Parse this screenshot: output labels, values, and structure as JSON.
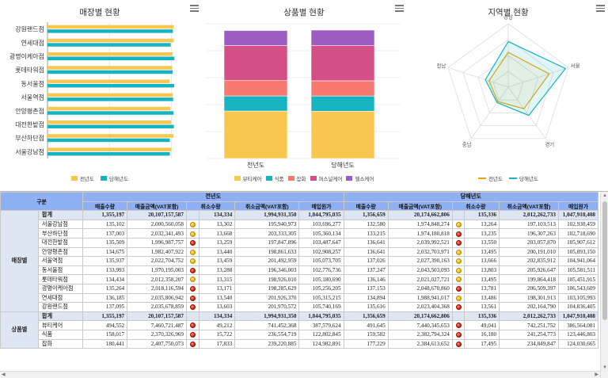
{
  "charts": {
    "store": {
      "title": "매장별 현황",
      "legend": [
        "전년도",
        "당해년도"
      ],
      "colors": {
        "prev": "#f9c74f",
        "curr": "#17b3c1"
      },
      "axis_ticks": [
        "0",
        "1,000,000,000",
        "2,000,000,000"
      ]
    },
    "product": {
      "title": "상품별 현황",
      "legend": [
        "뷰티케어",
        "식품",
        "잡화",
        "퍼스널케어",
        "헬스케어"
      ],
      "colors": [
        "#f9c74f",
        "#17b3c1",
        "#f6786f",
        "#d34f86",
        "#9d5cc1"
      ]
    },
    "region": {
      "title": "지역별 현황",
      "legend": [
        "전년도",
        "당해년도"
      ],
      "colors": {
        "prev": "#e8a400",
        "curr": "#17b3c1"
      },
      "axes": [
        "경남",
        "서울",
        "경기",
        "충남",
        "전남"
      ]
    }
  },
  "chart_data": [
    {
      "type": "bar",
      "orientation": "horizontal",
      "title": "매장별 현황",
      "categories": [
        "강원랜드점",
        "연세대점",
        "광명이케아점",
        "롯데타워점",
        "동서울점",
        "서울역점",
        "안양평촌점",
        "대전한밭점",
        "부산하단점",
        "서울강남점"
      ],
      "series": [
        {
          "name": "전년도",
          "values": [
            2035678859,
            2035806942,
            2018116594,
            2012358207,
            1970195003,
            2022704752,
            1982407922,
            1996987757,
            2032341493,
            2000560058
          ]
        },
        {
          "name": "당해년도",
          "values": [
            2023404368,
            1988941017,
            2048670860,
            2021027721,
            2043503093,
            2027390163,
            2032703971,
            2039992521,
            1974180818,
            1974848274
          ]
        }
      ],
      "xlim": [
        0,
        2300000000
      ]
    },
    {
      "type": "bar",
      "stacked": true,
      "title": "상품별 현황",
      "categories": [
        "전년도",
        "당해년도"
      ],
      "series": [
        {
          "name": "뷰티케어",
          "values": [
            7460721487,
            7440345653
          ]
        },
        {
          "name": "식품",
          "values": [
            2370326969,
            2382794324
          ]
        },
        {
          "name": "잡화",
          "values": [
            2407750073,
            2384613652
          ]
        },
        {
          "name": "퍼스널케어",
          "values": [
            5500000000,
            5520000000
          ]
        },
        {
          "name": "헬스케어",
          "values": [
            2368000000,
            2446000000
          ]
        }
      ]
    },
    {
      "type": "radar",
      "title": "지역별 현황",
      "categories": [
        "경남",
        "서울",
        "경기",
        "충남",
        "전남"
      ],
      "series": [
        {
          "name": "전년도",
          "values": [
            0.55,
            0.68,
            0.42,
            0.28,
            0.32
          ]
        },
        {
          "name": "당해년도",
          "values": [
            0.72,
            0.95,
            0.55,
            0.3,
            0.38
          ]
        }
      ],
      "ylim": [
        0,
        1
      ]
    },
    {
      "type": "table",
      "group_header": "구분",
      "period_headers": [
        "전년도",
        "당해년도"
      ],
      "columns": [
        "매출수량",
        "매출금액(VAT포함)",
        "취소수량",
        "취소금액(VAT포함)",
        "매입원가"
      ],
      "sections": [
        {
          "label": "매장별",
          "rows": [
            {
              "name": "합계",
              "total": true,
              "prev": [
                "1,355,197",
                "20,107,157,587",
                "",
                "134,334",
                "1,994,931,350",
                "1,044,795,035"
              ],
              "curr": [
                "1,356,659",
                "20,174,662,806",
                "",
                "135,336",
                "2,012,262,733",
                "1,047,910,408"
              ]
            },
            {
              "name": "서울강남점",
              "prev": [
                "135,102",
                "2,000,560,058",
                "yellow",
                "13,302",
                "195,940,973",
                "103,696,277"
              ],
              "curr": [
                "132,580",
                "1,974,848,274",
                "yellow",
                "13,264",
                "197,103,513",
                "102,930,459"
              ]
            },
            {
              "name": "부산하단점",
              "prev": [
                "137,003",
                "2,032,341,493",
                "yellow",
                "13,668",
                "203,333,305",
                "105,360,134"
              ],
              "curr": [
                "133,215",
                "1,974,180,818",
                "red",
                "13,235",
                "196,307,263",
                "102,718,690"
              ]
            },
            {
              "name": "대전한밭점",
              "prev": [
                "135,509",
                "1,996,987,757",
                "red",
                "13,259",
                "197,847,896",
                "103,487,647"
              ],
              "curr": [
                "136,641",
                "2,039,992,521",
                "red",
                "13,550",
                "203,057,870",
                "105,907,612"
              ]
            },
            {
              "name": "안양평촌점",
              "prev": [
                "134,675",
                "1,982,407,922",
                "yellow",
                "13,440",
                "198,861,633",
                "102,908,257"
              ],
              "curr": [
                "136,641",
                "2,032,703,971",
                "yellow",
                "13,495",
                "200,191,010",
                "105,893,150"
              ]
            },
            {
              "name": "서울역점",
              "prev": [
                "135,937",
                "2,022,704,752",
                "yellow",
                "13,459",
                "201,492,959",
                "105,073,705"
              ],
              "curr": [
                "137,026",
                "2,027,390,163",
                "yellow",
                "13,666",
                "202,835,912",
                "104,941,064"
              ]
            },
            {
              "name": "동서울점",
              "prev": [
                "133,993",
                "1,970,195,003",
                "red",
                "13,288",
                "196,346,003",
                "102,776,736"
              ],
              "curr": [
                "137,247",
                "2,043,503,093",
                "yellow",
                "13,803",
                "205,926,647",
                "105,581,511"
              ]
            },
            {
              "name": "롯데타워점",
              "prev": [
                "134,434",
                "2,012,358,207",
                "yellow",
                "13,315",
                "198,926,010",
                "105,180,690"
              ],
              "curr": [
                "136,146",
                "2,021,027,721",
                "yellow",
                "13,495",
                "199,864,418",
                "105,451,915"
              ]
            },
            {
              "name": "광명이케아점",
              "prev": [
                "135,264",
                "2,018,116,594",
                "red",
                "13,171",
                "198,285,629",
                "105,256,205"
              ],
              "curr": [
                "137,153",
                "2,048,670,860",
                "red",
                "13,781",
                "206,509,397",
                "106,543,609"
              ]
            },
            {
              "name": "연세대점",
              "prev": [
                "136,185",
                "2,035,806,942",
                "red",
                "13,540",
                "201,926,370",
                "105,315,215"
              ],
              "curr": [
                "134,894",
                "1,988,941,017",
                "yellow",
                "13,486",
                "198,301,913",
                "103,105,993"
              ]
            },
            {
              "name": "강원랜드점",
              "prev": [
                "137,095",
                "2,035,678,859",
                "red",
                "13,603",
                "201,970,572",
                "105,740,169"
              ],
              "curr": [
                "135,616",
                "2,023,404,368",
                "red",
                "13,561",
                "202,164,790",
                "104,836,405"
              ]
            }
          ]
        },
        {
          "label": "상품별",
          "rows": [
            {
              "name": "합계",
              "total": true,
              "prev": [
                "1,355,197",
                "20,107,157,587",
                "",
                "134,334",
                "1,994,931,350",
                "1,044,795,035"
              ],
              "curr": [
                "1,356,659",
                "20,174,662,806",
                "",
                "135,336",
                "2,012,262,733",
                "1,047,910,408"
              ]
            },
            {
              "name": "뷰티케어",
              "prev": [
                "494,552",
                "7,460,721,487",
                "red",
                "49,212",
                "741,452,368",
                "387,579,624"
              ],
              "curr": [
                "491,645",
                "7,440,345,653",
                "red",
                "49,041",
                "742,251,752",
                "386,564,081"
              ]
            },
            {
              "name": "식품",
              "prev": [
                "158,017",
                "2,370,326,969",
                "red",
                "15,722",
                "236,554,719",
                "122,802,845"
              ],
              "curr": [
                "159,582",
                "2,382,794,324",
                "red",
                "16,180",
                "241,254,773",
                "123,446,803"
              ]
            },
            {
              "name": "잡화",
              "prev": [
                "180,441",
                "2,407,750,073",
                "red",
                "17,833",
                "239,220,885",
                "124,982,891"
              ],
              "curr": [
                "177,229",
                "2,384,613,652",
                "red",
                "17,495",
                "234,849,847",
                "124,030,665"
              ]
            }
          ]
        }
      ]
    }
  ]
}
